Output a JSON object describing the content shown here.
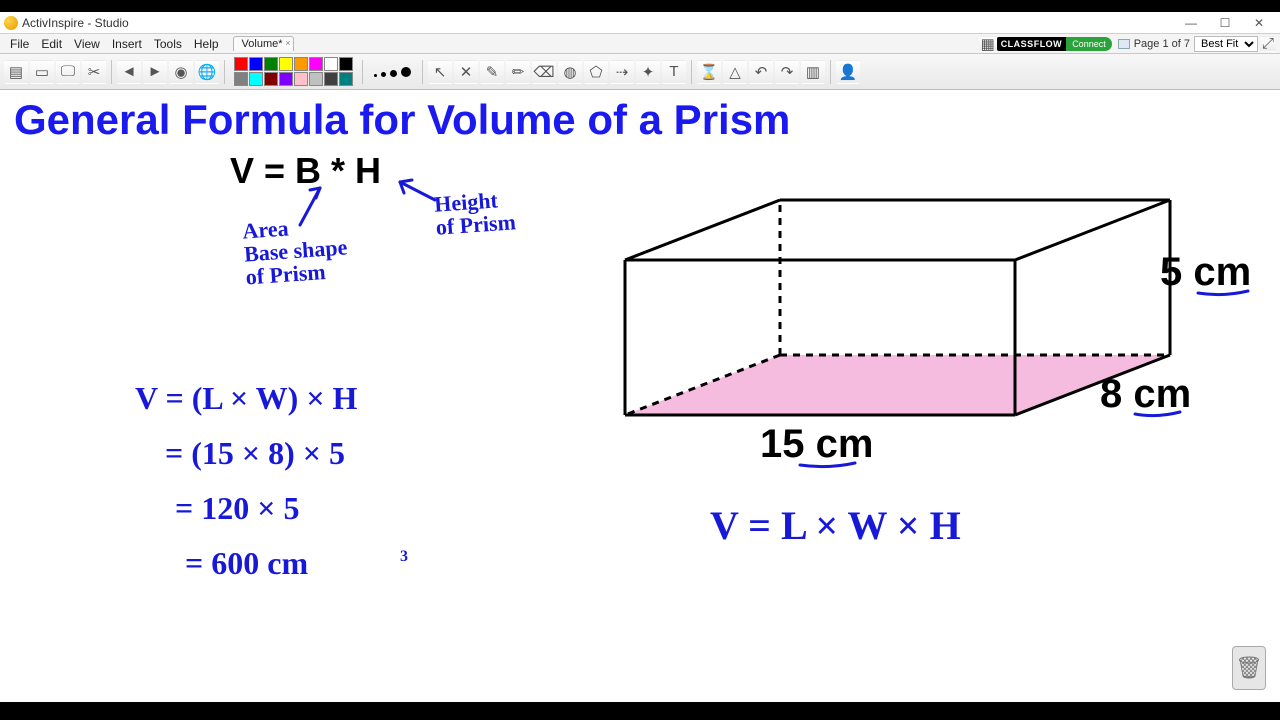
{
  "window": {
    "title": "ActivInspire - Studio",
    "minimize_tip": "Minimize",
    "maximize_tip": "Maximize",
    "close_tip": "Close"
  },
  "menu": {
    "items": [
      "File",
      "Edit",
      "View",
      "Insert",
      "Tools",
      "Help"
    ]
  },
  "document_tab": {
    "label": "Volume*"
  },
  "right_menu": {
    "classflow": "CLASSFLOW",
    "connect": "Connect",
    "page_text": "Page 1 of 7",
    "zoom": "Best Fit"
  },
  "toolbar": {
    "buttons_left": [
      {
        "name": "main-menu-icon",
        "glyph": "▤"
      },
      {
        "name": "flipchart-icon",
        "glyph": "▭"
      },
      {
        "name": "annotate-desktop-icon",
        "glyph": "🖵"
      },
      {
        "name": "screenshot-icon",
        "glyph": "✂"
      }
    ],
    "buttons_nav": [
      {
        "name": "prev-page-icon",
        "glyph": "◄"
      },
      {
        "name": "next-page-icon",
        "glyph": "►"
      },
      {
        "name": "start-vote-icon",
        "glyph": "◉"
      },
      {
        "name": "express-poll-icon",
        "glyph": "🌐"
      }
    ],
    "palette_colors": [
      "#ff0000",
      "#0000ff",
      "#008000",
      "#ffff00",
      "#ff9900",
      "#ff00ff",
      "#ffffff",
      "#000000",
      "#808080",
      "#00ffff",
      "#800000",
      "#8000ff",
      "#ffc0cb",
      "#c0c0c0",
      "#404040",
      "#008080"
    ],
    "size_dots": [
      3,
      5,
      7,
      10
    ],
    "buttons_tools": [
      {
        "name": "select-icon",
        "glyph": "↖"
      },
      {
        "name": "tools-icon",
        "glyph": "✕"
      },
      {
        "name": "pen-icon",
        "glyph": "✎"
      },
      {
        "name": "highlighter-icon",
        "glyph": "✏"
      },
      {
        "name": "eraser-icon",
        "glyph": "⌫"
      },
      {
        "name": "fill-icon",
        "glyph": "◍"
      },
      {
        "name": "shape-icon",
        "glyph": "⬠"
      },
      {
        "name": "connector-icon",
        "glyph": "⇢"
      },
      {
        "name": "magic-ink-icon",
        "glyph": "✦"
      },
      {
        "name": "text-icon",
        "glyph": "T"
      }
    ],
    "buttons_mid": [
      {
        "name": "clear-icon",
        "glyph": "⌛"
      },
      {
        "name": "reset-icon",
        "glyph": "△"
      },
      {
        "name": "undo-icon",
        "glyph": "↶"
      },
      {
        "name": "redo-icon",
        "glyph": "↷"
      },
      {
        "name": "browser-icon",
        "glyph": "▥"
      }
    ],
    "buttons_right": [
      {
        "name": "profile-icon",
        "glyph": "👤"
      }
    ]
  },
  "page_content": {
    "heading": "General Formula for Volume of a Prism",
    "typed_formula": "V = B * H",
    "annotation_B": "Area\nBase shape\nof Prism",
    "annotation_H": "Height\nof Prism",
    "work_lines": [
      "V = (L × W) × H",
      "= (15 × 8) × 5",
      "= 120 × 5",
      "= 600 cm"
    ],
    "work_exponent": "3",
    "rhs_formula": "V = L × W × H",
    "prism": {
      "length_label": "15 cm",
      "width_label": "8 cm",
      "height_label": "5 cm",
      "stroke": "#000000",
      "stroke_width": 3,
      "base_fill": "#f4b5db",
      "base_opacity": 0.9,
      "dash": "7 6",
      "underline_color": "#1818d8"
    },
    "ink_color": "#1818d8",
    "heading_color": "#1a1af0"
  }
}
